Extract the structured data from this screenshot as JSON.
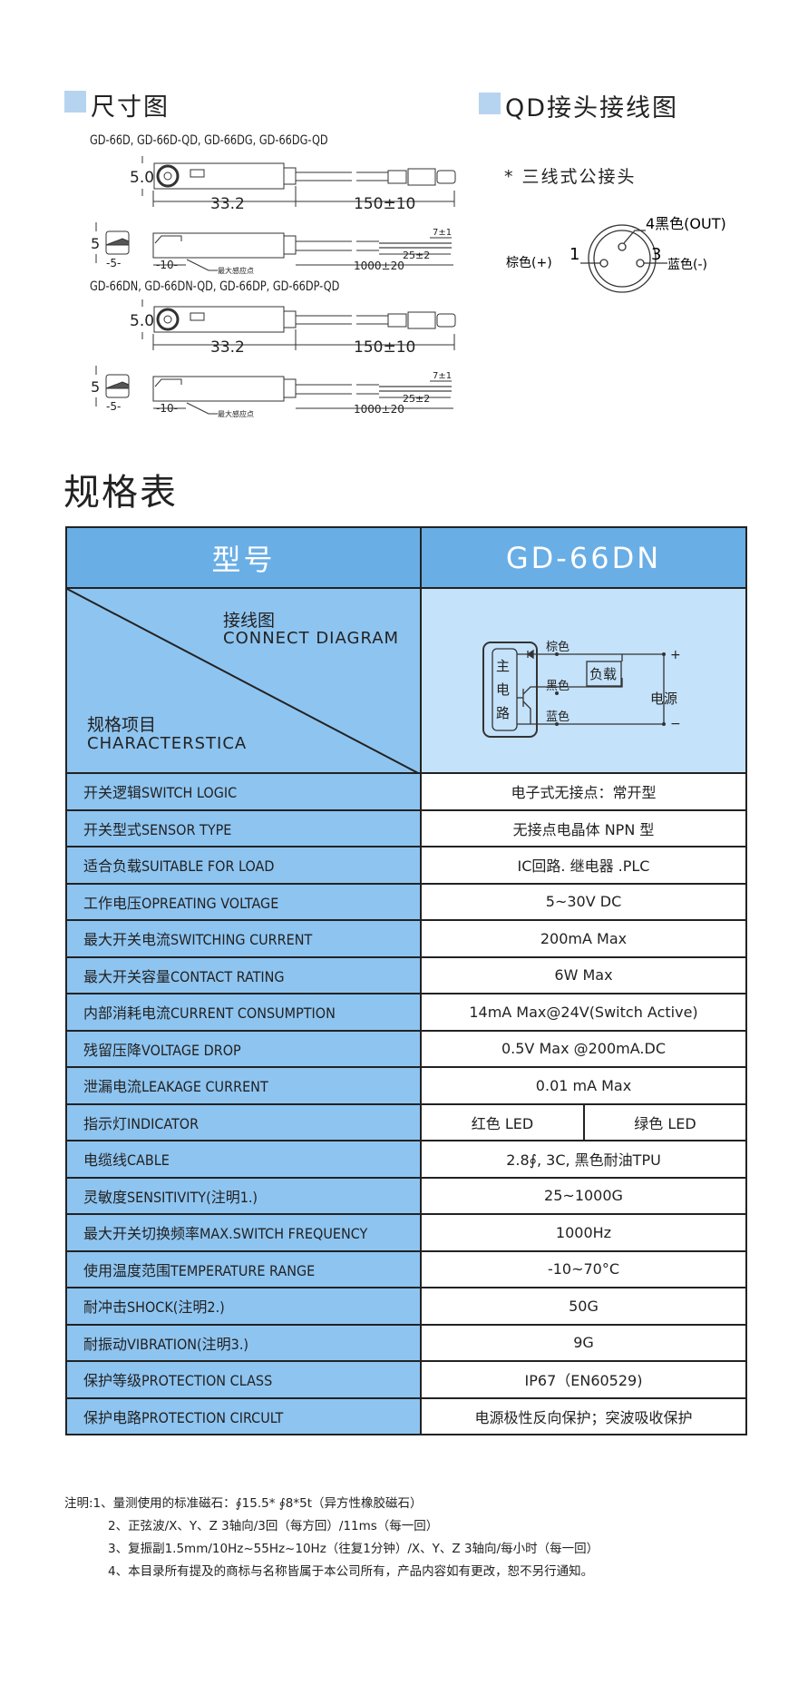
{
  "dimensions": {
    "title": "尺寸图",
    "group1_models": "GD-66D, GD-66D-QD, GD-66DG, GD-66DG-QD",
    "group2_models": "GD-66DN, GD-66DN-QD, GD-66DP, GD-66DP-QD",
    "labels": {
      "height": "5.0",
      "length": "33.2",
      "cable_qd": "150±10",
      "side": "5",
      "width": "-5-",
      "sense_offset": "-10-",
      "sense_point": "最大感应点",
      "strip": "7±1",
      "lead": "25±2",
      "cable": "1000±20"
    }
  },
  "qd": {
    "title": "QD接头接线图",
    "subtitle": "* 三线式公接头",
    "pin4": "4黑色(OUT)",
    "pin1_label": "棕色(+)",
    "pin1": "1",
    "pin3": "3",
    "pin3_label": "蓝色(-)"
  },
  "spec": {
    "title": "规格表",
    "header_key": "型号",
    "header_model": "GD-66DN",
    "diag_cn": "接线图",
    "diag_en": "CONNECT DIAGRAM",
    "char_cn": "规格项目",
    "char_en": "CHARACTERSTICA",
    "circuit": {
      "main": [
        "主",
        "电",
        "路"
      ],
      "brown": "棕色",
      "black": "黑色",
      "blue": "蓝色",
      "load": "负载",
      "power": "电源",
      "plus": "+",
      "minus": "−"
    },
    "rows": [
      {
        "k": "开关逻辑SWITCH LOGIC",
        "v": "电子式无接点：常开型"
      },
      {
        "k": "开关型式SENSOR TYPE",
        "v": "无接点电晶体 NPN 型"
      },
      {
        "k": "适合负载SUITABLE FOR LOAD",
        "v": "IC回路. 继电器 .PLC"
      },
      {
        "k": "工作电压OPREATING VOLTAGE",
        "v": "5~30V DC"
      },
      {
        "k": "最大开关电流SWITCHING CURRENT",
        "v": "200mA Max"
      },
      {
        "k": "最大开关容量CONTACT RATING",
        "v": "6W Max"
      },
      {
        "k": "内部消耗电流CURRENT CONSUMPTION",
        "v": "14mA Max@24V(Switch Active)"
      },
      {
        "k": "残留压降VOLTAGE DROP",
        "v": "0.5V Max @200mA.DC"
      },
      {
        "k": "泄漏电流LEAKAGE CURRENT",
        "v": "0.01 mA Max"
      },
      {
        "k": "指示灯INDICATOR",
        "v": "红色 LED",
        "v2": "绿色 LED"
      },
      {
        "k": "电缆线CABLE",
        "v": "2.8∮, 3C, 黑色耐油TPU"
      },
      {
        "k": "灵敏度SENSITIVITY(注明1.)",
        "v": "25~1000G"
      },
      {
        "k": "最大开关切换频率MAX.SWITCH FREQUENCY",
        "v": "1000Hz"
      },
      {
        "k": "使用温度范围TEMPERATURE RANGE",
        "v": "-10~70°C"
      },
      {
        "k": "耐冲击SHOCK(注明2.)",
        "v": "50G"
      },
      {
        "k": "耐振动VIBRATION(注明3.)",
        "v": "9G"
      },
      {
        "k": "保护等级PROTECTION CLASS",
        "v": "IP67（EN60529)"
      },
      {
        "k": "保护电路PROTECTION CIRCULT",
        "v": "电源极性反向保护；突波吸收保护"
      }
    ]
  },
  "notes": [
    "注明:1、量测使用的标准磁石：∮15.5* ∮8*5t（异方性橡胶磁石）",
    "2、正弦波/X、Y、Z 3轴向/3回（每方回）/11ms（每一回）",
    "3、复振副1.5mm/10Hz~55Hz~10Hz（往复1分钟）/X、Y、Z 3轴向/每小时（每一回）",
    "4、本目录所有提及的商标与名称皆属于本公司所有，产品内容如有更改，恕不另行通知。"
  ]
}
